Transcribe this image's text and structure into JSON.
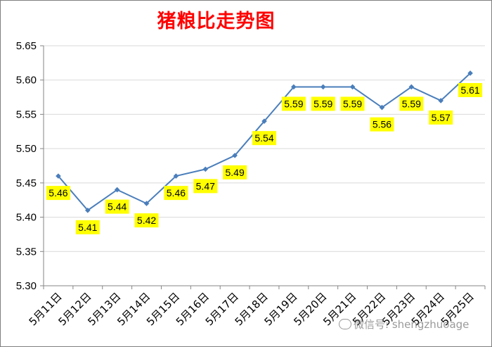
{
  "title": "猪粮比走势图",
  "watermark": "微信号: shengzhuoage",
  "colors": {
    "title": "#ff0000",
    "line": "#4a7ebb",
    "label_bg": "#ffff00",
    "grid": "#d9d9d9"
  },
  "chart_data": {
    "type": "line",
    "title": "猪粮比走势图",
    "categories": [
      "5月11日",
      "5月12日",
      "5月13日",
      "5月14日",
      "5月15日",
      "5月16日",
      "5月17日",
      "5月18日",
      "5月19日",
      "5月20日",
      "5月21日",
      "5月22日",
      "5月23日",
      "5月24日",
      "5月25日"
    ],
    "values": [
      5.46,
      5.41,
      5.44,
      5.42,
      5.46,
      5.47,
      5.49,
      5.54,
      5.59,
      5.59,
      5.59,
      5.56,
      5.59,
      5.57,
      5.61
    ],
    "data_labels": [
      "5.46",
      "5.41",
      "5.44",
      "5.42",
      "5.46",
      "5.47",
      "5.49",
      "5.54",
      "5.59",
      "5.59",
      "5.59",
      "5.56",
      "5.59",
      "5.57",
      "5.61"
    ],
    "y_ticks": [
      "5.30",
      "5.35",
      "5.40",
      "5.45",
      "5.50",
      "5.55",
      "5.60",
      "5.65"
    ],
    "ylim": [
      5.3,
      5.65
    ],
    "grid": true,
    "legend": false
  }
}
